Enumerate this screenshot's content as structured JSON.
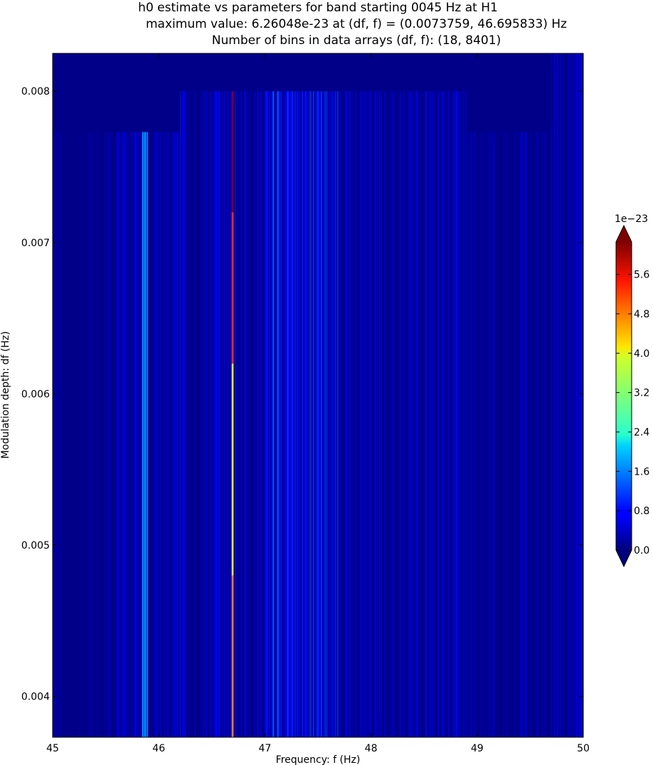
{
  "chart_data": {
    "type": "heatmap",
    "title_lines": [
      "h0 estimate vs parameters for band starting 0045 Hz at H1",
      "maximum value: 6.26048e-23 at (df, f) = (0.0073759, 46.695833) Hz",
      "Number of bins in data arrays (df, f): (18, 8401)"
    ],
    "xlabel": "Frequency: f (Hz)",
    "ylabel": "Modulation depth: df (Hz)",
    "xlim": [
      45,
      50
    ],
    "ylim": [
      0.00373,
      0.00825
    ],
    "xticks": [
      {
        "value": 45,
        "label": "45"
      },
      {
        "value": 46,
        "label": "46"
      },
      {
        "value": 47,
        "label": "47"
      },
      {
        "value": 48,
        "label": "48"
      },
      {
        "value": 49,
        "label": "49"
      },
      {
        "value": 50,
        "label": "50"
      }
    ],
    "yticks": [
      {
        "value": 0.004,
        "label": "0.004"
      },
      {
        "value": 0.005,
        "label": "0.005"
      },
      {
        "value": 0.006,
        "label": "0.006"
      },
      {
        "value": 0.007,
        "label": "0.007"
      },
      {
        "value": 0.008,
        "label": "0.008"
      }
    ],
    "colorbar": {
      "colormap": "jet",
      "min": 0.0,
      "max": 6.26,
      "extend": "both",
      "offset_label": "1e−23",
      "ticks": [
        {
          "value": 0.0,
          "label": "0.0"
        },
        {
          "value": 0.8,
          "label": "0.8"
        },
        {
          "value": 1.6,
          "label": "1.6"
        },
        {
          "value": 2.4,
          "label": "2.4"
        },
        {
          "value": 3.2,
          "label": "3.2"
        },
        {
          "value": 4.0,
          "label": "4.0"
        },
        {
          "value": 4.8,
          "label": "4.8"
        },
        {
          "value": 5.6,
          "label": "5.6"
        }
      ]
    },
    "background_value": 0.05,
    "max_point": {
      "df": 0.0073759,
      "f": 46.695833,
      "value": 6.26048
    },
    "regions": [
      {
        "f": [
          45.6,
          46.2
        ],
        "df": [
          0.00373,
          0.00773
        ],
        "level": 0.45,
        "density": 0.5
      },
      {
        "f": [
          46.2,
          47.0
        ],
        "df": [
          0.00373,
          0.008
        ],
        "level": 0.55,
        "density": 0.45
      },
      {
        "f": [
          47.0,
          47.7
        ],
        "df": [
          0.00373,
          0.008
        ],
        "level": 0.85,
        "density": 0.6
      },
      {
        "f": [
          47.7,
          48.9
        ],
        "df": [
          0.00373,
          0.008
        ],
        "level": 0.55,
        "density": 0.4
      },
      {
        "f": [
          48.9,
          49.7
        ],
        "df": [
          0.00373,
          0.00773
        ],
        "level": 0.35,
        "density": 0.3
      },
      {
        "f": [
          49.7,
          50.0
        ],
        "df": [
          0.00373,
          0.00825
        ],
        "level": 0.45,
        "density": 0.5
      },
      {
        "f": [
          45.0,
          45.6
        ],
        "df": [
          0.00373,
          0.00773
        ],
        "level": 0.25,
        "density": 0.2
      }
    ],
    "lines": [
      {
        "f": 45.85,
        "df": [
          0.00373,
          0.00773
        ],
        "value": 1.75
      },
      {
        "f": 45.87,
        "df": [
          0.00373,
          0.00773
        ],
        "value": 1.9
      },
      {
        "f": 45.89,
        "df": [
          0.00373,
          0.00773
        ],
        "value": 1.6
      },
      {
        "f": 47.08,
        "df": [
          0.00373,
          0.008
        ],
        "value": 1.3
      },
      {
        "f": 47.12,
        "df": [
          0.00373,
          0.008
        ],
        "value": 1.2
      }
    ],
    "max_line": {
      "f": 46.695833,
      "segments": [
        {
          "df": [
            0.00373,
            0.0048
          ],
          "value": 4.7
        },
        {
          "df": [
            0.0048,
            0.0062
          ],
          "value": 4.0
        },
        {
          "df": [
            0.0062,
            0.0072
          ],
          "value": 5.2
        },
        {
          "df": [
            0.0072,
            0.008
          ],
          "value": 6.26
        }
      ]
    }
  }
}
